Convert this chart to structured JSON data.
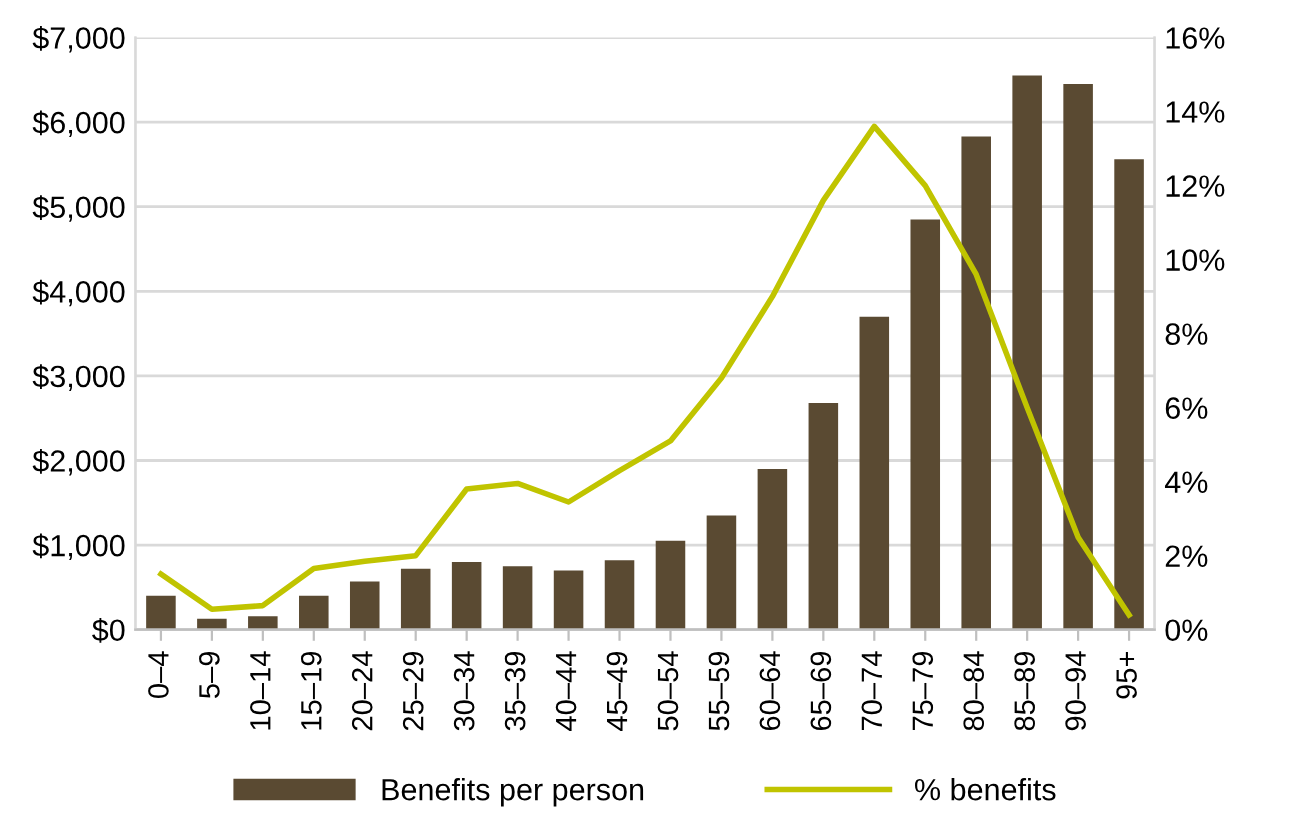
{
  "chart_data": {
    "type": "bar",
    "categories": [
      "0–4",
      "5–9",
      "10–14",
      "15–19",
      "20–24",
      "25–29",
      "30–34",
      "35–39",
      "40–44",
      "45–49",
      "50–54",
      "55–59",
      "60–64",
      "65–69",
      "70–74",
      "75–79",
      "80–84",
      "85–89",
      "90–94",
      "95+"
    ],
    "series": [
      {
        "name": "Benefits per person",
        "color": "#5a4a32",
        "values": [
          400,
          130,
          160,
          400,
          570,
          720,
          800,
          750,
          700,
          820,
          1050,
          1350,
          1900,
          2680,
          3700,
          4850,
          5830,
          6550,
          6450,
          5560
        ]
      },
      {
        "name": "% benefits",
        "color": "#c0c400",
        "type": "line",
        "axis": "y2",
        "values": [
          1.5,
          0.55,
          0.65,
          1.65,
          1.85,
          2.0,
          3.8,
          3.95,
          3.45,
          4.3,
          5.1,
          6.8,
          9.0,
          11.6,
          13.6,
          12.0,
          9.6,
          6.0,
          2.5,
          0.4
        ]
      }
    ],
    "ylim": [
      0,
      7000
    ],
    "yticks": [
      {
        "value": 0,
        "label": "$0"
      },
      {
        "value": 1000,
        "label": "$1,000"
      },
      {
        "value": 2000,
        "label": "$2,000"
      },
      {
        "value": 3000,
        "label": "$3,000"
      },
      {
        "value": 4000,
        "label": "$4,000"
      },
      {
        "value": 5000,
        "label": "$5,000"
      },
      {
        "value": 6000,
        "label": "$6,000"
      },
      {
        "value": 7000,
        "label": "$7,000"
      }
    ],
    "y2lim": [
      0,
      16
    ],
    "y2ticks": [
      {
        "value": 0,
        "label": "0%"
      },
      {
        "value": 2,
        "label": "2%"
      },
      {
        "value": 4,
        "label": "4%"
      },
      {
        "value": 6,
        "label": "6%"
      },
      {
        "value": 8,
        "label": "8%"
      },
      {
        "value": 10,
        "label": "10%"
      },
      {
        "value": 12,
        "label": "12%"
      },
      {
        "value": 14,
        "label": "14%"
      },
      {
        "value": 16,
        "label": "16%"
      }
    ],
    "grid": "y",
    "legend": "bottom",
    "marker": "none",
    "line_style": "solid"
  }
}
